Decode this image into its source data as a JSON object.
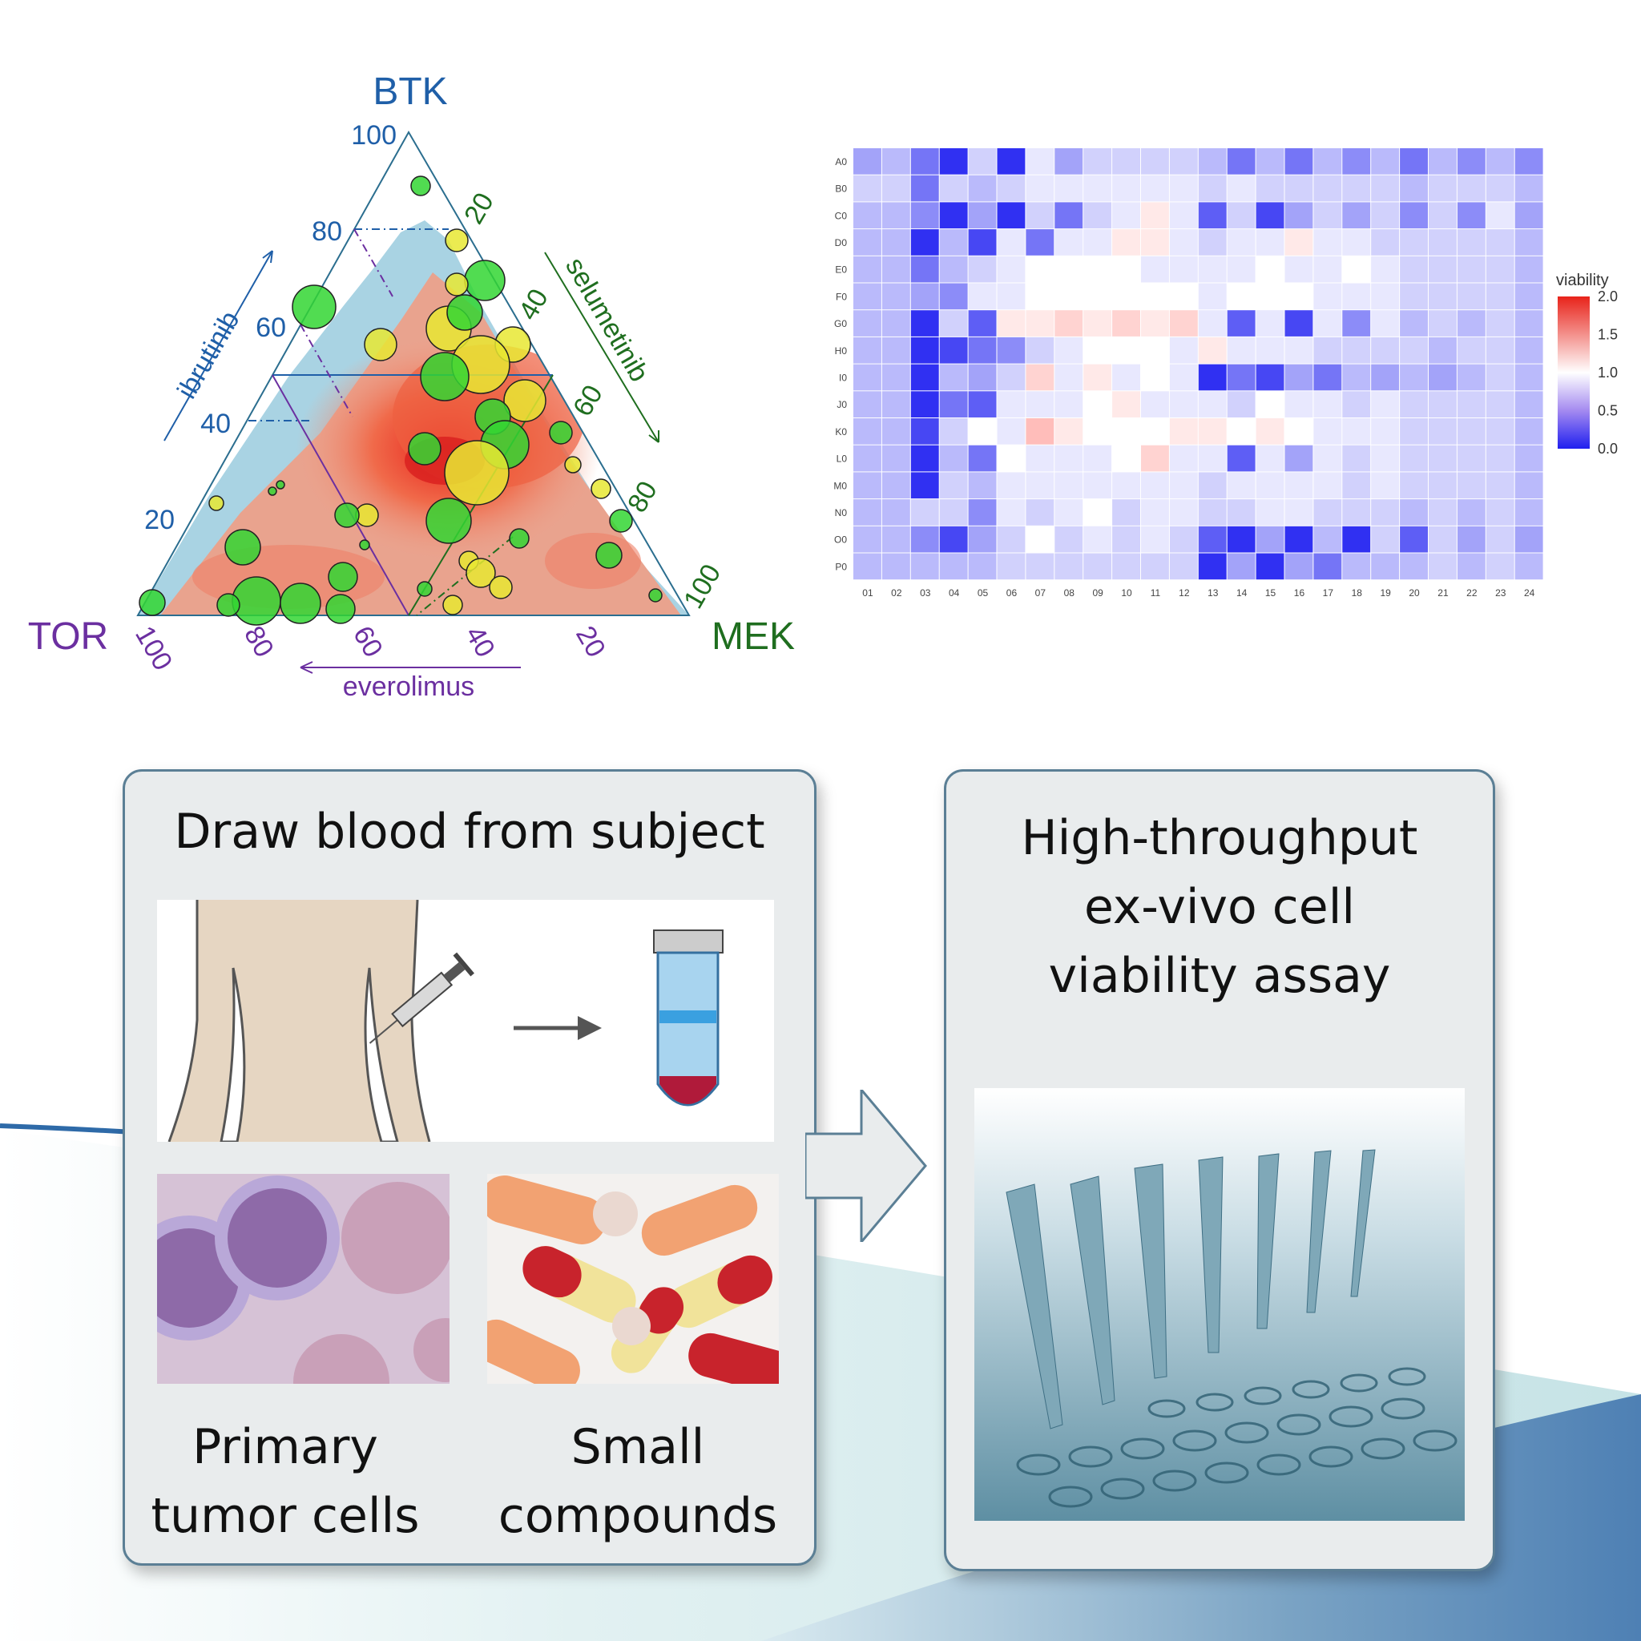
{
  "ternary": {
    "vertices": {
      "top": "BTK",
      "left": "TOR",
      "right": "MEK"
    },
    "edges": {
      "left": "ibrutinib",
      "right": "selumetinib",
      "bottom": "everolimus"
    },
    "ticks_left": [
      "20",
      "40",
      "60",
      "80",
      "100"
    ],
    "ticks_right": [
      "20",
      "40",
      "60",
      "80",
      "100"
    ],
    "ticks_bottom": [
      "100",
      "80",
      "60",
      "40",
      "20"
    ],
    "colors": {
      "btk": "#1f5fa8",
      "mek": "#1f6e1f",
      "tor": "#6b2fa0"
    }
  },
  "chart_data": {
    "type": "heatmap",
    "rows": [
      "A0",
      "B0",
      "C0",
      "D0",
      "E0",
      "F0",
      "G0",
      "H0",
      "I0",
      "J0",
      "K0",
      "L0",
      "M0",
      "N0",
      "O0",
      "P0"
    ],
    "cols": [
      "01",
      "02",
      "03",
      "04",
      "05",
      "06",
      "07",
      "08",
      "09",
      "10",
      "11",
      "12",
      "13",
      "14",
      "15",
      "16",
      "17",
      "18",
      "19",
      "20",
      "21",
      "22",
      "23",
      "24"
    ],
    "legend_title": "viability",
    "legend_ticks": [
      "2.0",
      "1.5",
      "1.0",
      "0.5",
      "0.0"
    ],
    "range": [
      0,
      2
    ],
    "values": [
      [
        0.6,
        0.7,
        0.4,
        0.1,
        0.8,
        0.1,
        0.9,
        0.6,
        0.8,
        0.8,
        0.8,
        0.8,
        0.7,
        0.4,
        0.7,
        0.4,
        0.7,
        0.5,
        0.7,
        0.4,
        0.7,
        0.5,
        0.7,
        0.5
      ],
      [
        0.8,
        0.8,
        0.4,
        0.8,
        0.7,
        0.8,
        0.9,
        0.9,
        0.9,
        0.9,
        0.9,
        0.9,
        0.8,
        0.9,
        0.8,
        0.8,
        0.8,
        0.8,
        0.8,
        0.7,
        0.8,
        0.8,
        0.8,
        0.7
      ],
      [
        0.7,
        0.7,
        0.5,
        0.1,
        0.6,
        0.1,
        0.8,
        0.4,
        0.8,
        0.9,
        1.1,
        0.9,
        0.3,
        0.8,
        0.2,
        0.6,
        0.8,
        0.6,
        0.8,
        0.5,
        0.8,
        0.5,
        0.9,
        0.6
      ],
      [
        0.7,
        0.7,
        0.1,
        0.7,
        0.2,
        0.9,
        0.4,
        0.9,
        0.9,
        1.1,
        1.1,
        0.9,
        0.8,
        0.9,
        0.9,
        1.1,
        0.9,
        0.9,
        0.8,
        0.8,
        0.8,
        0.8,
        0.8,
        0.7
      ],
      [
        0.7,
        0.7,
        0.4,
        0.7,
        0.8,
        0.9,
        1.0,
        1.0,
        1.0,
        1.0,
        0.9,
        0.9,
        0.9,
        0.9,
        1.0,
        0.9,
        0.9,
        1.0,
        0.9,
        0.8,
        0.8,
        0.8,
        0.8,
        0.7
      ],
      [
        0.7,
        0.7,
        0.6,
        0.5,
        0.9,
        0.9,
        1.0,
        1.0,
        1.0,
        1.0,
        1.0,
        1.0,
        0.9,
        1.0,
        1.0,
        1.0,
        0.9,
        0.9,
        0.9,
        0.8,
        0.8,
        0.8,
        0.8,
        0.7
      ],
      [
        0.7,
        0.7,
        0.1,
        0.8,
        0.3,
        1.1,
        1.1,
        1.2,
        1.1,
        1.2,
        1.1,
        1.2,
        0.9,
        0.3,
        0.9,
        0.2,
        0.9,
        0.5,
        0.9,
        0.7,
        0.8,
        0.7,
        0.8,
        0.7
      ],
      [
        0.7,
        0.7,
        0.1,
        0.2,
        0.4,
        0.5,
        0.8,
        0.9,
        1.0,
        1.0,
        1.0,
        0.9,
        1.1,
        0.9,
        0.9,
        0.9,
        0.8,
        0.8,
        0.8,
        0.8,
        0.7,
        0.8,
        0.8,
        0.7
      ],
      [
        0.7,
        0.7,
        0.1,
        0.7,
        0.6,
        0.8,
        1.2,
        0.9,
        1.1,
        0.9,
        1.0,
        0.9,
        0.1,
        0.4,
        0.2,
        0.6,
        0.4,
        0.7,
        0.6,
        0.7,
        0.6,
        0.7,
        0.8,
        0.7
      ],
      [
        0.7,
        0.7,
        0.1,
        0.4,
        0.3,
        0.9,
        0.9,
        0.9,
        1.0,
        1.1,
        0.9,
        0.9,
        0.9,
        0.8,
        1.0,
        0.9,
        0.9,
        0.8,
        0.9,
        0.8,
        0.8,
        0.8,
        0.8,
        0.7
      ],
      [
        0.7,
        0.7,
        0.2,
        0.8,
        1.0,
        0.9,
        1.3,
        1.1,
        1.0,
        1.0,
        1.0,
        1.1,
        1.1,
        1.0,
        1.1,
        1.0,
        0.9,
        0.9,
        0.9,
        0.8,
        0.8,
        0.8,
        0.8,
        0.7
      ],
      [
        0.7,
        0.7,
        0.1,
        0.7,
        0.4,
        1.0,
        0.9,
        0.9,
        0.9,
        1.0,
        1.2,
        0.9,
        0.9,
        0.3,
        0.9,
        0.6,
        0.9,
        0.8,
        0.9,
        0.8,
        0.8,
        0.8,
        0.8,
        0.7
      ],
      [
        0.7,
        0.7,
        0.1,
        0.8,
        0.7,
        0.9,
        0.9,
        0.9,
        0.9,
        0.9,
        0.9,
        0.9,
        0.8,
        0.9,
        0.9,
        0.9,
        0.9,
        0.8,
        0.9,
        0.8,
        0.8,
        0.8,
        0.8,
        0.7
      ],
      [
        0.7,
        0.7,
        0.8,
        0.8,
        0.5,
        0.9,
        0.8,
        0.9,
        1.0,
        0.8,
        0.9,
        0.9,
        0.8,
        0.8,
        0.9,
        0.9,
        0.8,
        0.8,
        0.8,
        0.7,
        0.8,
        0.7,
        0.8,
        0.7
      ],
      [
        0.7,
        0.7,
        0.5,
        0.2,
        0.6,
        0.8,
        1.0,
        0.8,
        0.9,
        0.8,
        0.9,
        0.8,
        0.3,
        0.1,
        0.6,
        0.1,
        0.7,
        0.1,
        0.8,
        0.3,
        0.8,
        0.6,
        0.8,
        0.6
      ],
      [
        0.7,
        0.7,
        0.7,
        0.7,
        0.7,
        0.8,
        0.8,
        0.8,
        0.8,
        0.8,
        0.8,
        0.8,
        0.1,
        0.6,
        0.1,
        0.6,
        0.4,
        0.7,
        0.7,
        0.7,
        0.8,
        0.7,
        0.8,
        0.7
      ]
    ]
  },
  "flow": {
    "step1_title": "Draw blood from subject",
    "cells_caption": "Primary\ntumor cells",
    "compounds_caption": "Small\ncompounds",
    "step2_title": "High-throughput\nex-vivo cell\nviability assay"
  }
}
